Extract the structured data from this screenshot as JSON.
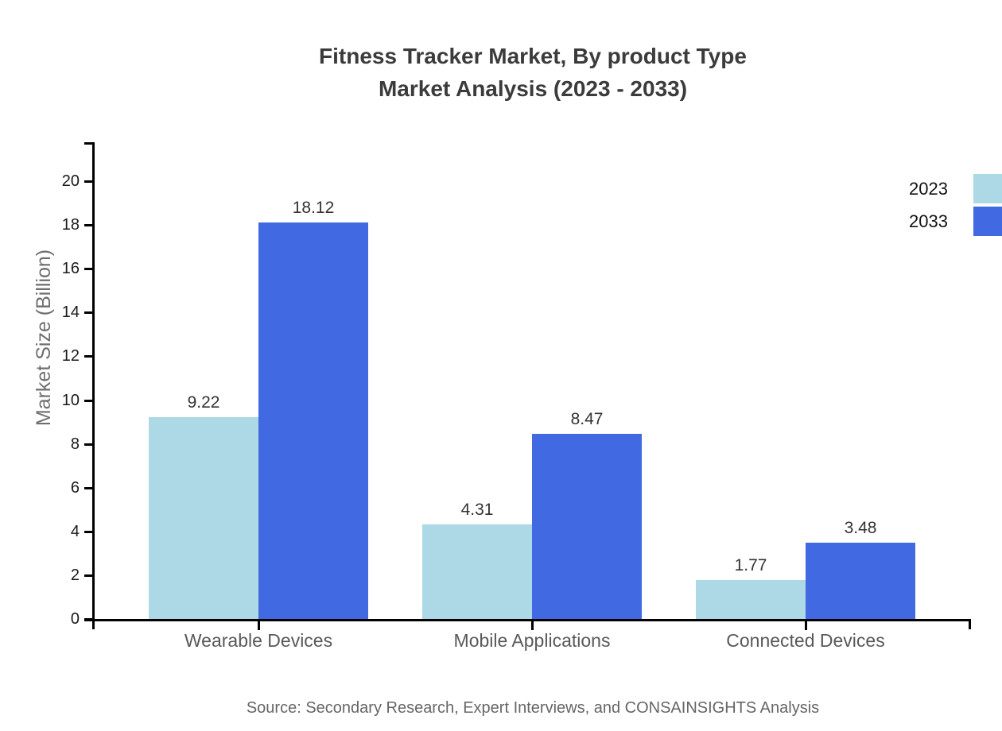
{
  "title": {
    "line1": "Fitness Tracker Market, By product Type",
    "line2": "Market Analysis (2023 - 2033)"
  },
  "source": "Source: Secondary Research, Expert Interviews, and CONSAINSIGHTS Analysis",
  "chart_data": {
    "type": "bar",
    "title": "Fitness Tracker Market, By product Type Market Analysis (2023 - 2033)",
    "categories": [
      "Wearable Devices",
      "Mobile Applications",
      "Connected Devices"
    ],
    "series": [
      {
        "name": "2023",
        "color": "#ADD8E6",
        "values": [
          9.22,
          4.31,
          1.77
        ]
      },
      {
        "name": "2033",
        "color": "#4169E1",
        "values": [
          18.12,
          8.47,
          3.48
        ]
      }
    ],
    "xlabel": "",
    "ylabel": "Market Size (Billion)",
    "ylim": [
      0,
      22
    ],
    "yticks": [
      0,
      2,
      4,
      6,
      8,
      10,
      12,
      14,
      16,
      18,
      20
    ],
    "grid": false,
    "legend_position": "top-right",
    "bar_value_labels": true
  },
  "colors": {
    "axis": "#000000",
    "tick_label": "#1a1a1a",
    "title": "#3b3b3b",
    "category_label": "#595959",
    "ylabel": "#6e6e6e",
    "bar_label": "#333333",
    "legend_label": "#131313",
    "source": "#666666",
    "background": "#ffffff"
  }
}
